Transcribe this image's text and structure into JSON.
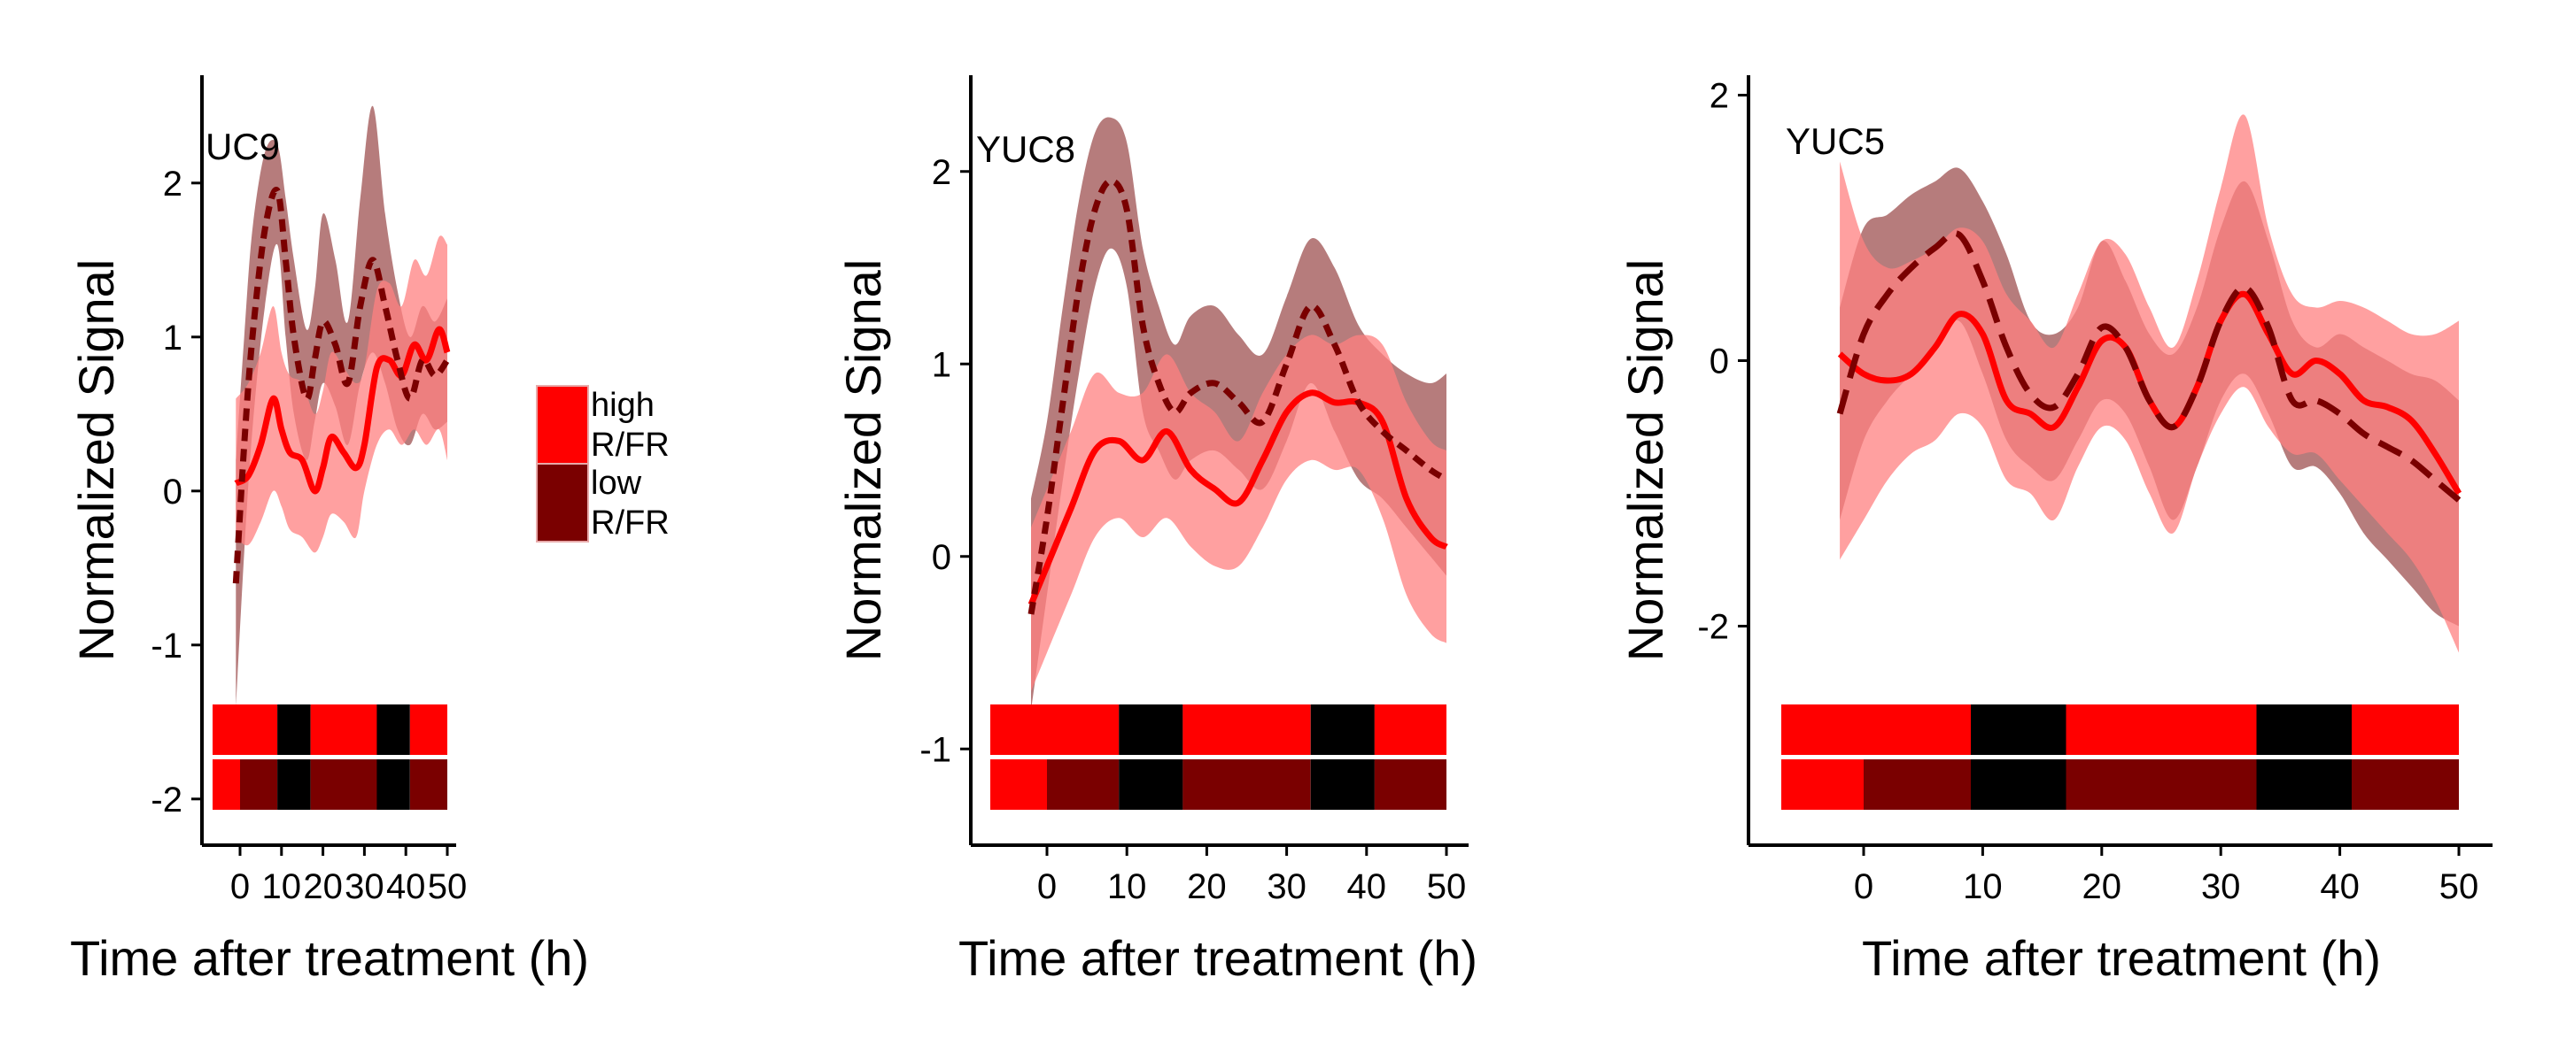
{
  "colors": {
    "high": "#ff0000",
    "low": "#7a0000",
    "high_band": "#ff8080",
    "low_band": "#9e5050",
    "dark": "#000000"
  },
  "legend": {
    "entries": [
      {
        "line1": "high",
        "line2": "R/FR",
        "color": "#ff0000"
      },
      {
        "line1": "low",
        "line2": "R/FR",
        "color": "#7a0000"
      }
    ]
  },
  "chart_data": [
    {
      "type": "line",
      "gene": "UC9",
      "xlabel": "Time after treatment (h)",
      "ylabel": "Normalized Signal",
      "xlim": [
        -3,
        50
      ],
      "ylim": [
        -2.3,
        2.7
      ],
      "x_ticks": [
        0,
        10,
        20,
        30,
        40,
        50
      ],
      "y_ticks": [
        -2,
        -1,
        0,
        1,
        2
      ],
      "x_tick_labels": [
        "0",
        "10",
        "20",
        "30",
        "40",
        "50"
      ],
      "y_tick_labels": [
        "-2",
        "-1",
        "0",
        "1",
        "2"
      ],
      "series": [
        {
          "name": "high R/FR",
          "style": "solid",
          "color": "#ff0000",
          "x": [
            -1,
            2,
            5,
            8,
            10,
            12,
            15,
            18,
            20,
            22,
            25,
            28,
            30,
            33,
            36,
            39,
            42,
            45,
            48,
            50
          ],
          "y": [
            0.05,
            0.1,
            0.3,
            0.6,
            0.4,
            0.25,
            0.2,
            0.0,
            0.15,
            0.35,
            0.25,
            0.15,
            0.3,
            0.8,
            0.85,
            0.75,
            0.95,
            0.85,
            1.05,
            0.9
          ],
          "lower": [
            -0.3,
            -0.35,
            -0.2,
            0.0,
            -0.1,
            -0.25,
            -0.3,
            -0.4,
            -0.3,
            -0.15,
            -0.2,
            -0.3,
            0.0,
            0.3,
            0.4,
            0.3,
            0.4,
            0.3,
            0.4,
            0.2
          ],
          "upper": [
            0.6,
            0.7,
            0.9,
            1.2,
            0.9,
            0.75,
            0.7,
            0.5,
            0.65,
            0.9,
            0.8,
            0.7,
            0.8,
            1.3,
            1.35,
            1.2,
            1.5,
            1.4,
            1.65,
            1.6
          ]
        },
        {
          "name": "low R/FR",
          "style": "dashed",
          "color": "#7a0000",
          "x": [
            -1,
            1,
            3,
            6,
            9,
            11,
            13,
            16,
            18,
            20,
            23,
            26,
            29,
            32,
            35,
            38,
            41,
            44,
            47,
            50
          ],
          "y": [
            -0.6,
            0.3,
            1.0,
            1.7,
            1.95,
            1.5,
            1.0,
            0.6,
            0.85,
            1.1,
            0.95,
            0.7,
            1.2,
            1.5,
            1.2,
            0.85,
            0.6,
            0.85,
            0.75,
            0.85
          ],
          "lower": [
            -1.4,
            -0.4,
            0.4,
            1.2,
            1.6,
            1.0,
            0.5,
            0.2,
            0.45,
            0.7,
            0.55,
            0.3,
            0.7,
            0.9,
            0.7,
            0.4,
            0.3,
            0.5,
            0.4,
            0.45
          ],
          "upper": [
            0.2,
            1.0,
            1.7,
            2.2,
            2.25,
            1.9,
            1.5,
            1.05,
            1.3,
            1.8,
            1.5,
            1.1,
            1.9,
            2.5,
            1.8,
            1.3,
            1.0,
            1.2,
            1.1,
            1.25
          ]
        }
      ],
      "light_bars": [
        {
          "row": "high",
          "segments": [
            [
              "high",
              -3,
              9
            ],
            [
              "dark",
              9,
              17
            ],
            [
              "high",
              17,
              33
            ],
            [
              "dark",
              33,
              41
            ],
            [
              "high",
              41,
              50
            ]
          ]
        },
        {
          "row": "low",
          "segments": [
            [
              "high",
              -3,
              0
            ],
            [
              "low",
              0,
              9
            ],
            [
              "dark",
              9,
              17
            ],
            [
              "low",
              17,
              33
            ],
            [
              "dark",
              33,
              41
            ],
            [
              "low",
              41,
              50
            ]
          ]
        }
      ]
    },
    {
      "type": "line",
      "gene": "YUC8",
      "xlabel": "Time after treatment (h)",
      "ylabel": "Normalized Signal",
      "xlim": [
        -10,
        53
      ],
      "ylim": [
        -1.5,
        2.5
      ],
      "x_ticks": [
        0,
        10,
        20,
        30,
        40,
        50
      ],
      "y_ticks": [
        -1,
        0,
        1,
        2
      ],
      "x_tick_labels": [
        "0",
        "10",
        "20",
        "30",
        "40",
        "50"
      ],
      "y_tick_labels": [
        "-1",
        "0",
        "1",
        "2"
      ],
      "series": [
        {
          "name": "high R/FR",
          "style": "solid",
          "color": "#ff0000",
          "x": [
            -2,
            0,
            3,
            6,
            9,
            12,
            15,
            18,
            21,
            24,
            27,
            30,
            33,
            36,
            39,
            42,
            45,
            48,
            50
          ],
          "y": [
            -0.25,
            -0.05,
            0.25,
            0.55,
            0.6,
            0.5,
            0.65,
            0.45,
            0.35,
            0.28,
            0.5,
            0.75,
            0.85,
            0.8,
            0.8,
            0.7,
            0.3,
            0.1,
            0.05
          ],
          "lower": [
            -0.7,
            -0.5,
            -0.2,
            0.1,
            0.2,
            0.1,
            0.2,
            0.05,
            -0.05,
            -0.05,
            0.15,
            0.4,
            0.5,
            0.45,
            0.45,
            0.2,
            -0.2,
            -0.4,
            -0.45
          ],
          "upper": [
            0.15,
            0.35,
            0.65,
            0.95,
            0.85,
            0.85,
            1.05,
            0.85,
            0.75,
            0.6,
            0.85,
            1.05,
            1.15,
            1.1,
            1.15,
            1.1,
            0.8,
            0.6,
            0.55
          ]
        },
        {
          "name": "low R/FR",
          "style": "dashed",
          "color": "#7a0000",
          "x": [
            -2,
            0,
            2,
            4,
            6,
            8,
            10,
            12,
            14,
            16,
            18,
            21,
            24,
            27,
            30,
            33,
            36,
            39,
            42,
            45,
            48,
            50
          ],
          "y": [
            -0.3,
            0.2,
            0.8,
            1.4,
            1.8,
            1.95,
            1.8,
            1.2,
            0.9,
            0.75,
            0.85,
            0.9,
            0.8,
            0.7,
            1.0,
            1.3,
            1.1,
            0.8,
            0.65,
            0.55,
            0.45,
            0.4
          ],
          "lower": [
            -0.8,
            -0.2,
            0.4,
            0.95,
            1.4,
            1.6,
            1.4,
            0.75,
            0.55,
            0.4,
            0.5,
            0.55,
            0.45,
            0.35,
            0.6,
            0.9,
            0.65,
            0.4,
            0.3,
            0.15,
            0.0,
            -0.1
          ],
          "upper": [
            0.3,
            0.7,
            1.3,
            1.85,
            2.2,
            2.28,
            2.15,
            1.6,
            1.3,
            1.1,
            1.25,
            1.3,
            1.15,
            1.05,
            1.35,
            1.65,
            1.5,
            1.2,
            1.05,
            0.95,
            0.9,
            0.95
          ]
        }
      ],
      "light_bars": [
        {
          "row": "high",
          "segments": [
            [
              "high",
              -7,
              9
            ],
            [
              "dark",
              9,
              17
            ],
            [
              "high",
              17,
              33
            ],
            [
              "dark",
              33,
              41
            ],
            [
              "high",
              41,
              50
            ]
          ]
        },
        {
          "row": "low",
          "segments": [
            [
              "high",
              -7,
              0
            ],
            [
              "low",
              0,
              9
            ],
            [
              "dark",
              9,
              17
            ],
            [
              "low",
              17,
              33
            ],
            [
              "dark",
              33,
              41
            ],
            [
              "low",
              41,
              50
            ]
          ]
        }
      ]
    },
    {
      "type": "line",
      "gene": "YUC5",
      "xlabel": "Time after treatment (h)",
      "ylabel": "Normalized Signal",
      "xlim": [
        -10,
        53
      ],
      "ylim": [
        -3.65,
        2.15
      ],
      "x_ticks": [
        0,
        10,
        20,
        30,
        40,
        50
      ],
      "y_ticks": [
        -2,
        0,
        2
      ],
      "x_tick_labels": [
        "0",
        "10",
        "20",
        "30",
        "40",
        "50"
      ],
      "y_tick_labels": [
        "-2",
        "0",
        "2"
      ],
      "series": [
        {
          "name": "high R/FR",
          "style": "solid",
          "color": "#ff0000",
          "x": [
            -2,
            0,
            2,
            4,
            6,
            8,
            10,
            12,
            14,
            16,
            18,
            20,
            22,
            24,
            26,
            28,
            30,
            32,
            34,
            36,
            38,
            40,
            42,
            44,
            46,
            48,
            50
          ],
          "y": [
            0.05,
            -0.1,
            -0.15,
            -0.1,
            0.1,
            0.35,
            0.2,
            -0.3,
            -0.4,
            -0.5,
            -0.2,
            0.15,
            0.1,
            -0.3,
            -0.5,
            -0.2,
            0.3,
            0.5,
            0.2,
            -0.1,
            0.0,
            -0.1,
            -0.3,
            -0.35,
            -0.45,
            -0.7,
            -1.0
          ],
          "lower": [
            -1.5,
            -1.2,
            -0.9,
            -0.7,
            -0.6,
            -0.4,
            -0.5,
            -0.9,
            -1.0,
            -1.2,
            -0.8,
            -0.5,
            -0.6,
            -1.0,
            -1.3,
            -0.8,
            -0.4,
            -0.2,
            -0.5,
            -0.7,
            -0.7,
            -0.9,
            -1.1,
            -1.3,
            -1.5,
            -1.8,
            -2.2
          ],
          "upper": [
            1.5,
            0.9,
            0.7,
            0.75,
            0.85,
            1.0,
            0.9,
            0.5,
            0.3,
            0.1,
            0.5,
            0.9,
            0.8,
            0.4,
            0.1,
            0.6,
            1.3,
            1.85,
            1.0,
            0.5,
            0.4,
            0.45,
            0.4,
            0.3,
            0.2,
            0.2,
            0.3
          ]
        },
        {
          "name": "low R/FR",
          "style": "dashed",
          "color": "#7a0000",
          "x": [
            -2,
            0,
            2,
            4,
            6,
            8,
            10,
            12,
            14,
            16,
            18,
            20,
            22,
            24,
            26,
            28,
            30,
            32,
            34,
            36,
            38,
            40,
            42,
            44,
            46,
            48,
            50
          ],
          "y": [
            -0.4,
            0.2,
            0.5,
            0.7,
            0.85,
            0.95,
            0.6,
            0.1,
            -0.25,
            -0.35,
            -0.1,
            0.25,
            0.1,
            -0.3,
            -0.5,
            -0.2,
            0.3,
            0.55,
            0.25,
            -0.3,
            -0.3,
            -0.4,
            -0.55,
            -0.65,
            -0.75,
            -0.9,
            -1.05
          ],
          "lower": [
            -1.2,
            -0.6,
            -0.3,
            -0.1,
            0.1,
            0.3,
            -0.1,
            -0.6,
            -0.8,
            -0.9,
            -0.6,
            -0.3,
            -0.4,
            -0.8,
            -1.2,
            -0.8,
            -0.3,
            -0.1,
            -0.4,
            -0.8,
            -0.8,
            -1.0,
            -1.3,
            -1.5,
            -1.7,
            -1.9,
            -2.0
          ],
          "upper": [
            0.4,
            1.0,
            1.1,
            1.25,
            1.35,
            1.45,
            1.2,
            0.8,
            0.3,
            0.2,
            0.4,
            0.9,
            0.6,
            0.2,
            0.05,
            0.4,
            1.0,
            1.35,
            0.9,
            0.3,
            0.1,
            0.2,
            0.1,
            0.0,
            -0.1,
            -0.15,
            -0.3
          ]
        }
      ],
      "light_bars": [
        {
          "row": "high",
          "segments": [
            [
              "high",
              -7,
              9
            ],
            [
              "dark",
              9,
              17
            ],
            [
              "high",
              17,
              33
            ],
            [
              "dark",
              33,
              41
            ],
            [
              "high",
              41,
              50
            ]
          ]
        },
        {
          "row": "low",
          "segments": [
            [
              "high",
              -7,
              0
            ],
            [
              "low",
              0,
              9
            ],
            [
              "dark",
              9,
              17
            ],
            [
              "low",
              17,
              33
            ],
            [
              "dark",
              33,
              41
            ],
            [
              "low",
              41,
              50
            ]
          ]
        }
      ]
    }
  ]
}
